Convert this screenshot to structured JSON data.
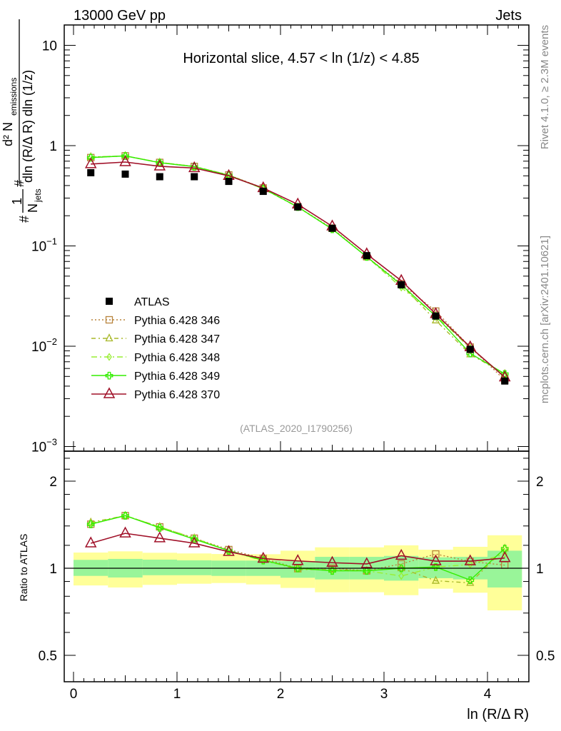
{
  "header": {
    "energy": "13000 GeV pp",
    "process": "Jets"
  },
  "side_labels": {
    "rivet": "Rivet 4.1.0, ≥ 2.3M events",
    "mcplots": "mcplots.cern.ch [arXiv:2401.10621]"
  },
  "chart_data": [
    {
      "type": "line",
      "panel": "main",
      "title": "Horizontal slice, 4.57 < ln (1/z) < 4.85",
      "analysis": "(ATLAS_2020_I1790256)",
      "ylabel": {
        "prefix": "#",
        "one": "1",
        "njets": "N",
        "njets_sub": "jets",
        "hash": "#",
        "numerator": "d² N",
        "numerator_sub": "emissions",
        "denominator": "dln (R/Δ R) dln (1/z)"
      },
      "yscale": "log",
      "ylim": [
        0.0009,
        16
      ],
      "yticks": [
        {
          "v": 10,
          "label": "10"
        },
        {
          "v": 1,
          "label": "1"
        },
        {
          "v": 0.1,
          "base": "10",
          "exp": "−1"
        },
        {
          "v": 0.01,
          "base": "10",
          "exp": "−2"
        },
        {
          "v": 0.001,
          "base": "10",
          "exp": "−3"
        }
      ],
      "xlim": [
        -0.09,
        4.4
      ],
      "x": [
        0.167,
        0.5,
        0.833,
        1.167,
        1.5,
        1.833,
        2.167,
        2.5,
        2.833,
        3.167,
        3.5,
        3.833,
        4.167
      ],
      "legend_position": "middle-left",
      "series": [
        {
          "name": "ATLAS",
          "color": "#000000",
          "marker": "filled-square",
          "dash": "none",
          "values": [
            0.537,
            0.52,
            0.49,
            0.49,
            0.44,
            0.35,
            0.245,
            0.15,
            0.08,
            0.041,
            0.02,
            0.0093,
            0.0045
          ]
        },
        {
          "name": "Pythia 6.428 346",
          "color": "#b8843c",
          "marker": "open-square",
          "dash": "2,3",
          "values": [
            0.76,
            0.79,
            0.68,
            0.62,
            0.51,
            0.378,
            0.245,
            0.15,
            0.078,
            0.042,
            0.0224,
            0.0098,
            0.0046
          ]
        },
        {
          "name": "Pythia 6.428 347",
          "color": "#a8b828",
          "marker": "open-triangle",
          "dash": "6,4,2,4",
          "values": [
            0.77,
            0.79,
            0.68,
            0.62,
            0.51,
            0.375,
            0.243,
            0.148,
            0.078,
            0.041,
            0.0181,
            0.0083,
            0.0053
          ]
        },
        {
          "name": "Pythia 6.428 348",
          "color": "#99ee33",
          "marker": "open-diamond",
          "dash": "8,4,2,4",
          "values": [
            0.77,
            0.79,
            0.68,
            0.62,
            0.51,
            0.37,
            0.245,
            0.147,
            0.078,
            0.0385,
            0.0202,
            0.0096,
            0.005
          ]
        },
        {
          "name": "Pythia 6.428 349",
          "color": "#33ee00",
          "marker": "open-cross",
          "dash": "none",
          "values": [
            0.76,
            0.79,
            0.676,
            0.617,
            0.506,
            0.373,
            0.245,
            0.147,
            0.078,
            0.041,
            0.02,
            0.0085,
            0.0053
          ]
        },
        {
          "name": "Pythia 6.428 370",
          "color": "#a01028",
          "marker": "open-triangle-large",
          "dash": "none",
          "values": [
            0.655,
            0.686,
            0.622,
            0.598,
            0.5,
            0.378,
            0.26,
            0.157,
            0.083,
            0.045,
            0.021,
            0.0098,
            0.0049
          ]
        }
      ]
    },
    {
      "type": "line",
      "panel": "ratio",
      "ylabel": "Ratio to ATLAS",
      "xlabel": "ln (R/Δ R)",
      "yscale": "log",
      "ylim": [
        0.406,
        2.54
      ],
      "yticks": [
        {
          "v": 0.5,
          "label": "0.5"
        },
        {
          "v": 1,
          "label": "1"
        },
        {
          "v": 2,
          "label": "2"
        }
      ],
      "xticks": [
        {
          "v": 0,
          "label": "0"
        },
        {
          "v": 1,
          "label": "1"
        },
        {
          "v": 2,
          "label": "2"
        },
        {
          "v": 3,
          "label": "3"
        },
        {
          "v": 4,
          "label": "4"
        }
      ],
      "bin_edges": [
        0,
        0.333,
        0.667,
        1.0,
        1.333,
        1.667,
        2.0,
        2.333,
        2.667,
        3.0,
        3.333,
        3.667,
        4.0,
        4.333
      ],
      "band_total": {
        "color": "#ffff99",
        "lo": [
          0.872,
          0.858,
          0.876,
          0.884,
          0.889,
          0.879,
          0.855,
          0.826,
          0.826,
          0.807,
          0.85,
          0.823,
          0.715
        ],
        "hi": [
          1.133,
          1.144,
          1.131,
          1.125,
          1.12,
          1.118,
          1.15,
          1.181,
          1.181,
          1.2,
          1.159,
          1.186,
          1.3
        ]
      },
      "band_stat": {
        "color": "#99f599",
        "lo": [
          0.941,
          0.929,
          0.946,
          0.946,
          0.941,
          0.941,
          0.927,
          0.915,
          0.915,
          0.906,
          0.924,
          0.915,
          0.858
        ],
        "hi": [
          1.069,
          1.077,
          1.071,
          1.065,
          1.063,
          1.063,
          1.058,
          1.095,
          1.095,
          1.103,
          1.091,
          1.095,
          1.15
        ]
      },
      "series": [
        {
          "name": "Pythia 6.428 346",
          "values": [
            1.42,
            1.52,
            1.39,
            1.27,
            1.16,
            1.08,
            1.0,
            1.0,
            0.98,
            1.035,
            1.12,
            1.055,
            1.025
          ]
        },
        {
          "name": "Pythia 6.428 347",
          "values": [
            1.44,
            1.52,
            1.39,
            1.27,
            1.15,
            1.07,
            0.99,
            0.99,
            0.98,
            1.0,
            0.905,
            0.89,
            1.17
          ]
        },
        {
          "name": "Pythia 6.428 348",
          "values": [
            1.43,
            1.52,
            1.39,
            1.27,
            1.15,
            1.06,
            1.0,
            0.98,
            0.98,
            0.94,
            1.01,
            1.03,
            1.12
          ]
        },
        {
          "name": "Pythia 6.428 349",
          "values": [
            1.42,
            1.52,
            1.38,
            1.26,
            1.15,
            1.065,
            1.0,
            0.98,
            0.98,
            1.0,
            1.01,
            0.91,
            1.17
          ]
        },
        {
          "name": "Pythia 6.428 370",
          "values": [
            1.22,
            1.32,
            1.27,
            1.22,
            1.14,
            1.08,
            1.06,
            1.045,
            1.035,
            1.105,
            1.058,
            1.058,
            1.085
          ]
        }
      ]
    }
  ]
}
